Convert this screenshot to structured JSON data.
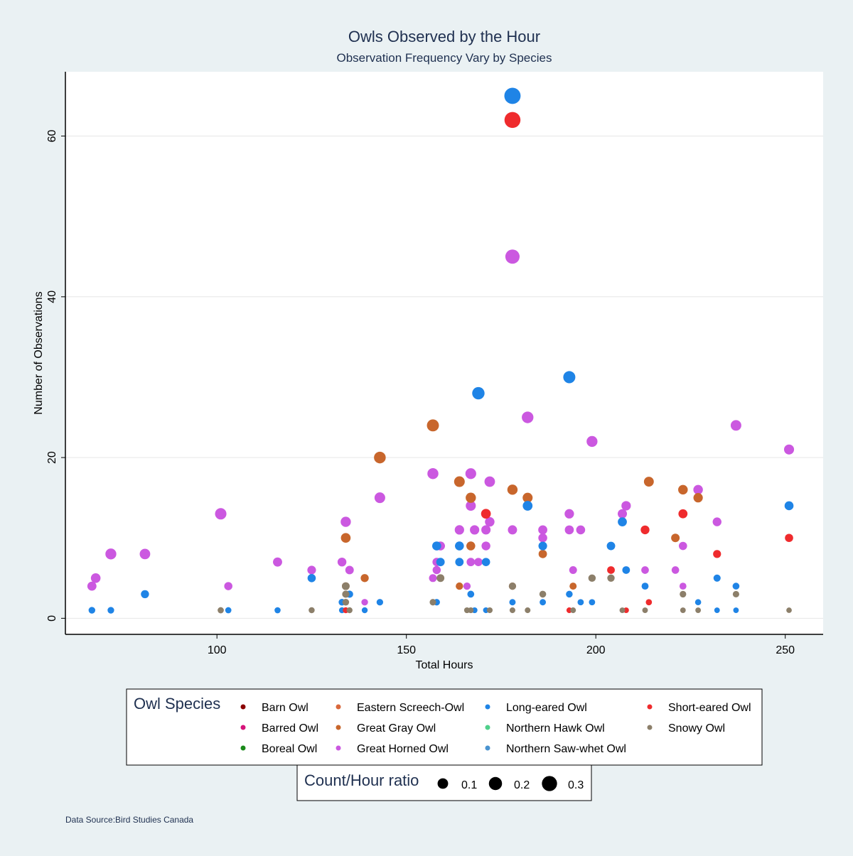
{
  "chart_data": {
    "type": "scatter",
    "title": "Owls Observed by the Hour",
    "subtitle": "Observation Frequency Vary by Species",
    "xlabel": "Total Hours",
    "ylabel": "Number of Observations",
    "xlim": [
      60,
      260
    ],
    "ylim": [
      -2,
      68
    ],
    "xticks": [
      100,
      150,
      200,
      250
    ],
    "yticks": [
      0,
      20,
      40,
      60
    ],
    "grid": true,
    "source": "Data Source:Bird Studies Canada",
    "legend": {
      "title": "Owl Species",
      "position": "bottom",
      "entries": [
        {
          "name": "Barn Owl",
          "color": "#8b0000"
        },
        {
          "name": "Barred Owl",
          "color": "#d6137a"
        },
        {
          "name": "Boreal Owl",
          "color": "#1a8a1a"
        },
        {
          "name": "Eastern Screech-Owl",
          "color": "#d9683c"
        },
        {
          "name": "Great Gray Owl",
          "color": "#c8662c"
        },
        {
          "name": "Great Horned Owl",
          "color": "#cb58e0"
        },
        {
          "name": "Long-eared Owl",
          "color": "#1f84e6"
        },
        {
          "name": "Northern Hawk Owl",
          "color": "#4fd08a"
        },
        {
          "name": "Northern Saw-whet Owl",
          "color": "#4a93d0"
        },
        {
          "name": "Short-eared Owl",
          "color": "#ef2b2d"
        },
        {
          "name": "Snowy Owl",
          "color": "#8c7f6a"
        }
      ]
    },
    "size_legend": {
      "title": "Count/Hour ratio",
      "items": [
        {
          "label": "0.1",
          "ratio": 0.1
        },
        {
          "label": "0.2",
          "ratio": 0.2
        },
        {
          "label": "0.3",
          "ratio": 0.3
        }
      ]
    },
    "series": [
      {
        "name": "Great Horned Owl",
        "color": "#cb58e0",
        "points": [
          [
            67,
            4
          ],
          [
            68,
            5
          ],
          [
            72,
            8
          ],
          [
            81,
            8
          ],
          [
            101,
            13
          ],
          [
            103,
            4
          ],
          [
            116,
            7
          ],
          [
            125,
            6
          ],
          [
            133,
            7
          ],
          [
            134,
            12
          ],
          [
            135,
            6
          ],
          [
            139,
            2
          ],
          [
            143,
            15
          ],
          [
            157,
            18
          ],
          [
            157,
            5
          ],
          [
            158,
            6
          ],
          [
            158,
            7
          ],
          [
            159,
            9
          ],
          [
            164,
            11
          ],
          [
            166,
            4
          ],
          [
            167,
            18
          ],
          [
            167,
            14
          ],
          [
            167,
            7
          ],
          [
            168,
            11
          ],
          [
            169,
            7
          ],
          [
            171,
            11
          ],
          [
            171,
            9
          ],
          [
            172,
            17
          ],
          [
            172,
            12
          ],
          [
            178,
            45
          ],
          [
            178,
            11
          ],
          [
            182,
            25
          ],
          [
            186,
            11
          ],
          [
            186,
            10
          ],
          [
            193,
            13
          ],
          [
            193,
            11
          ],
          [
            194,
            6
          ],
          [
            196,
            11
          ],
          [
            199,
            22
          ],
          [
            207,
            13
          ],
          [
            208,
            14
          ],
          [
            213,
            6
          ],
          [
            221,
            6
          ],
          [
            223,
            9
          ],
          [
            223,
            4
          ],
          [
            227,
            16
          ],
          [
            232,
            12
          ],
          [
            237,
            24
          ],
          [
            251,
            21
          ]
        ]
      },
      {
        "name": "Great Gray Owl",
        "color": "#c8662c",
        "points": [
          [
            134,
            10
          ],
          [
            134,
            4
          ],
          [
            139,
            5
          ],
          [
            143,
            20
          ],
          [
            157,
            24
          ],
          [
            164,
            17
          ],
          [
            164,
            4
          ],
          [
            167,
            15
          ],
          [
            167,
            9
          ],
          [
            178,
            16
          ],
          [
            178,
            4
          ],
          [
            182,
            15
          ],
          [
            186,
            8
          ],
          [
            194,
            4
          ],
          [
            214,
            17
          ],
          [
            221,
            10
          ],
          [
            223,
            16
          ],
          [
            227,
            15
          ]
        ]
      },
      {
        "name": "Long-eared Owl",
        "color": "#1f84e6",
        "points": [
          [
            178,
            65
          ],
          [
            169,
            28
          ],
          [
            193,
            30
          ],
          [
            182,
            14
          ],
          [
            251,
            14
          ],
          [
            207,
            12
          ],
          [
            158,
            9
          ],
          [
            164,
            9
          ],
          [
            186,
            9
          ],
          [
            204,
            9
          ],
          [
            159,
            7
          ],
          [
            164,
            7
          ],
          [
            171,
            7
          ],
          [
            208,
            6
          ],
          [
            125,
            5
          ],
          [
            232,
            5
          ],
          [
            81,
            3
          ],
          [
            135,
            3
          ],
          [
            167,
            3
          ],
          [
            193,
            3
          ],
          [
            213,
            4
          ],
          [
            237,
            4
          ],
          [
            133,
            2
          ],
          [
            143,
            2
          ],
          [
            158,
            2
          ],
          [
            178,
            2
          ],
          [
            186,
            2
          ],
          [
            196,
            2
          ],
          [
            199,
            2
          ],
          [
            227,
            2
          ],
          [
            67,
            1
          ],
          [
            72,
            1
          ],
          [
            103,
            1
          ],
          [
            116,
            1
          ],
          [
            133,
            1
          ],
          [
            139,
            1
          ],
          [
            168,
            1
          ],
          [
            171,
            1
          ],
          [
            232,
            1
          ],
          [
            237,
            1
          ]
        ]
      },
      {
        "name": "Short-eared Owl",
        "color": "#ef2b2d",
        "points": [
          [
            178,
            62
          ],
          [
            171,
            13
          ],
          [
            213,
            11
          ],
          [
            223,
            13
          ],
          [
            251,
            10
          ],
          [
            232,
            8
          ],
          [
            204,
            6
          ],
          [
            214,
            2
          ],
          [
            134,
            1
          ],
          [
            193,
            1
          ],
          [
            208,
            1
          ]
        ]
      },
      {
        "name": "Snowy Owl",
        "color": "#8c7f6a",
        "points": [
          [
            134,
            4
          ],
          [
            134,
            3
          ],
          [
            134,
            2
          ],
          [
            159,
            5
          ],
          [
            199,
            5
          ],
          [
            204,
            5
          ],
          [
            178,
            4
          ],
          [
            186,
            3
          ],
          [
            223,
            3
          ],
          [
            237,
            3
          ],
          [
            157,
            2
          ],
          [
            101,
            1
          ],
          [
            125,
            1
          ],
          [
            135,
            1
          ],
          [
            166,
            1
          ],
          [
            167,
            1
          ],
          [
            172,
            1
          ],
          [
            178,
            1
          ],
          [
            182,
            1
          ],
          [
            194,
            1
          ],
          [
            207,
            1
          ],
          [
            213,
            1
          ],
          [
            223,
            1
          ],
          [
            227,
            1
          ],
          [
            251,
            1
          ]
        ]
      }
    ]
  }
}
